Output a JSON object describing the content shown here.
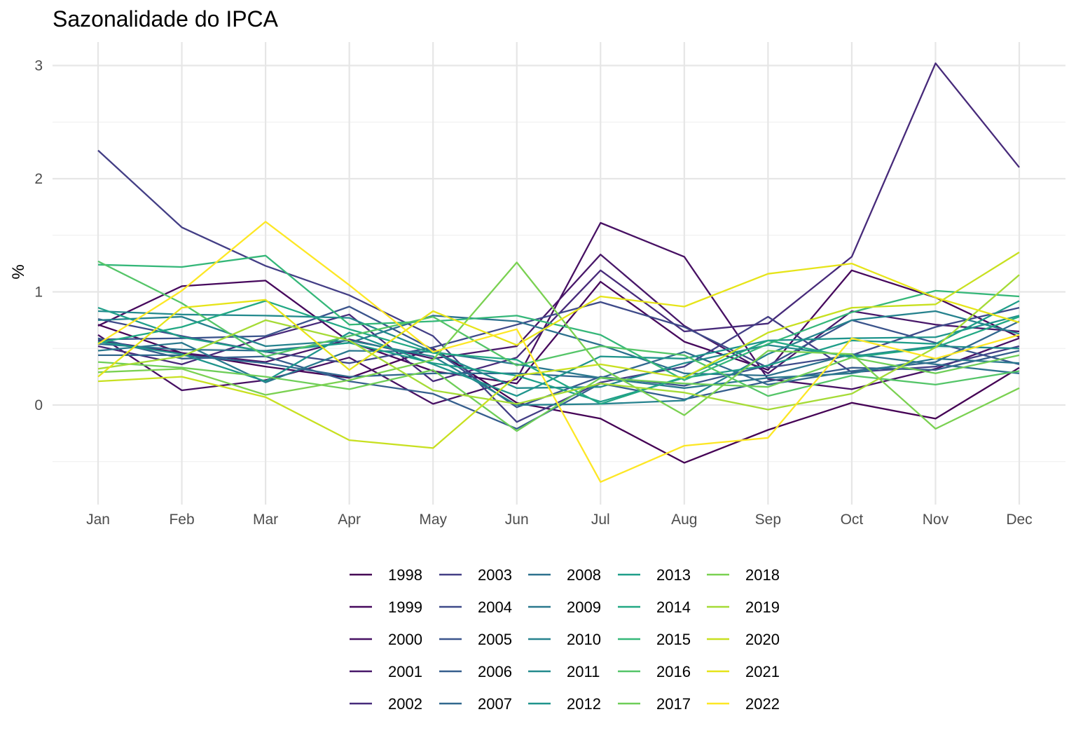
{
  "chart_data": {
    "type": "line",
    "title": "Sazonalidade do IPCA",
    "xlabel": "",
    "ylabel": "%",
    "categories": [
      "Jan",
      "Feb",
      "Mar",
      "Apr",
      "May",
      "Jun",
      "Jul",
      "Aug",
      "Sep",
      "Oct",
      "Nov",
      "Dec"
    ],
    "ylim": [
      -0.85,
      3.2
    ],
    "y_ticks": [
      0,
      1,
      2,
      3
    ],
    "grid": true,
    "legend_position": "bottom",
    "series": [
      {
        "name": "1998",
        "color": "#440154",
        "values": [
          0.71,
          0.46,
          0.34,
          0.24,
          0.5,
          0.02,
          -0.12,
          -0.51,
          -0.22,
          0.02,
          -0.12,
          0.33
        ]
      },
      {
        "name": "1999",
        "color": "#46085C",
        "values": [
          0.7,
          1.05,
          1.1,
          0.56,
          0.3,
          0.19,
          1.09,
          0.56,
          0.31,
          1.19,
          0.95,
          0.6
        ]
      },
      {
        "name": "2000",
        "color": "#471063",
        "values": [
          0.62,
          0.13,
          0.22,
          0.42,
          0.01,
          0.23,
          1.61,
          1.31,
          0.23,
          0.14,
          0.32,
          0.59
        ]
      },
      {
        "name": "2001",
        "color": "#481769",
        "values": [
          0.57,
          0.46,
          0.38,
          0.58,
          0.41,
          0.52,
          1.33,
          0.7,
          0.28,
          0.83,
          0.71,
          0.65
        ]
      },
      {
        "name": "2002",
        "color": "#472A7A",
        "values": [
          0.52,
          0.36,
          0.6,
          0.8,
          0.21,
          0.42,
          1.19,
          0.65,
          0.72,
          1.31,
          3.02,
          2.1
        ]
      },
      {
        "name": "2003",
        "color": "#433E85",
        "values": [
          2.25,
          1.57,
          1.23,
          0.97,
          0.61,
          -0.15,
          0.2,
          0.34,
          0.78,
          0.29,
          0.34,
          0.52
        ]
      },
      {
        "name": "2004",
        "color": "#3E4A89",
        "values": [
          0.76,
          0.61,
          0.47,
          0.37,
          0.51,
          0.71,
          0.91,
          0.69,
          0.33,
          0.44,
          0.69,
          0.86
        ]
      },
      {
        "name": "2005",
        "color": "#3A548C",
        "values": [
          0.58,
          0.59,
          0.61,
          0.87,
          0.49,
          -0.02,
          0.25,
          0.17,
          0.35,
          0.75,
          0.55,
          0.36
        ]
      },
      {
        "name": "2006",
        "color": "#355E8D",
        "values": [
          0.59,
          0.41,
          0.43,
          0.21,
          0.1,
          -0.21,
          0.19,
          0.05,
          0.21,
          0.33,
          0.31,
          0.48
        ]
      },
      {
        "name": "2007",
        "color": "#31688E",
        "values": [
          0.44,
          0.44,
          0.37,
          0.25,
          0.28,
          0.28,
          0.24,
          0.47,
          0.18,
          0.3,
          0.38,
          0.74
        ]
      },
      {
        "name": "2008",
        "color": "#2D718E",
        "values": [
          0.54,
          0.49,
          0.48,
          0.55,
          0.79,
          0.74,
          0.53,
          0.28,
          0.26,
          0.45,
          0.36,
          0.28
        ]
      },
      {
        "name": "2009",
        "color": "#2A788E",
        "values": [
          0.48,
          0.55,
          0.2,
          0.48,
          0.47,
          0.36,
          0.24,
          0.15,
          0.24,
          0.28,
          0.41,
          0.37
        ]
      },
      {
        "name": "2010",
        "color": "#26828E",
        "values": [
          0.75,
          0.78,
          0.52,
          0.57,
          0.43,
          0.0,
          0.01,
          0.04,
          0.45,
          0.75,
          0.83,
          0.63
        ]
      },
      {
        "name": "2011",
        "color": "#238A8D",
        "values": [
          0.83,
          0.8,
          0.79,
          0.77,
          0.47,
          0.15,
          0.16,
          0.37,
          0.53,
          0.43,
          0.52,
          0.5
        ]
      },
      {
        "name": "2012",
        "color": "#1F948C",
        "values": [
          0.56,
          0.45,
          0.21,
          0.64,
          0.36,
          0.08,
          0.43,
          0.41,
          0.57,
          0.59,
          0.6,
          0.79
        ]
      },
      {
        "name": "2013",
        "color": "#1F9E89",
        "values": [
          0.86,
          0.6,
          0.47,
          0.55,
          0.37,
          0.26,
          0.03,
          0.24,
          0.35,
          0.57,
          0.54,
          0.92
        ]
      },
      {
        "name": "2014",
        "color": "#22A884",
        "values": [
          0.55,
          0.69,
          0.92,
          0.67,
          0.46,
          0.4,
          0.01,
          0.25,
          0.57,
          0.42,
          0.51,
          0.78
        ]
      },
      {
        "name": "2015",
        "color": "#35B779",
        "values": [
          1.24,
          1.22,
          1.32,
          0.71,
          0.74,
          0.79,
          0.62,
          0.22,
          0.54,
          0.82,
          1.01,
          0.96
        ]
      },
      {
        "name": "2016",
        "color": "#54C568",
        "values": [
          1.27,
          0.9,
          0.43,
          0.61,
          0.78,
          0.35,
          0.52,
          0.44,
          0.08,
          0.26,
          0.18,
          0.3
        ]
      },
      {
        "name": "2017",
        "color": "#6ECE58",
        "values": [
          0.38,
          0.33,
          0.25,
          0.14,
          0.31,
          -0.23,
          0.24,
          0.19,
          0.16,
          0.42,
          0.28,
          0.44
        ]
      },
      {
        "name": "2018",
        "color": "#7AD151",
        "values": [
          0.29,
          0.32,
          0.09,
          0.22,
          0.4,
          1.26,
          0.33,
          -0.09,
          0.48,
          0.45,
          -0.21,
          0.15
        ]
      },
      {
        "name": "2019",
        "color": "#A5DB36",
        "values": [
          0.32,
          0.43,
          0.75,
          0.57,
          0.13,
          0.01,
          0.19,
          0.11,
          -0.04,
          0.1,
          0.51,
          1.15
        ]
      },
      {
        "name": "2020",
        "color": "#C8E020",
        "values": [
          0.21,
          0.25,
          0.07,
          -0.31,
          -0.38,
          0.26,
          0.36,
          0.24,
          0.64,
          0.86,
          0.89,
          1.35
        ]
      },
      {
        "name": "2021",
        "color": "#E6E419",
        "values": [
          0.25,
          0.86,
          0.93,
          0.31,
          0.83,
          0.53,
          0.96,
          0.87,
          1.16,
          1.25,
          0.95,
          0.73
        ]
      },
      {
        "name": "2022",
        "color": "#FDE725",
        "values": [
          0.54,
          1.01,
          1.62,
          1.06,
          0.47,
          0.67,
          -0.68,
          -0.36,
          -0.29,
          0.59,
          0.41,
          0.62
        ]
      }
    ]
  }
}
